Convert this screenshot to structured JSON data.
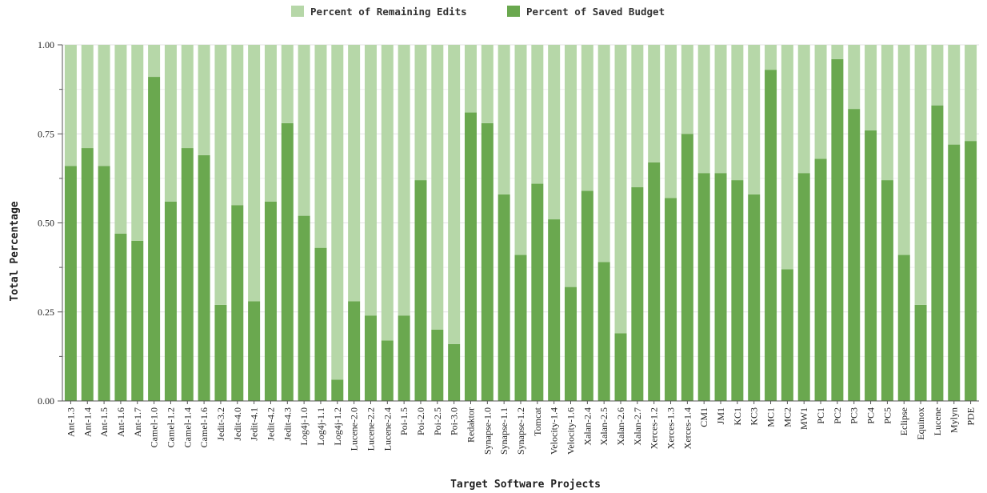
{
  "chart_data": {
    "type": "bar",
    "stacked": true,
    "xlabel": "Target Software Projects",
    "ylabel": "Total Percentage",
    "ylim": [
      0,
      1
    ],
    "yticks": [
      "0.00",
      "0.25",
      "0.50",
      "0.75",
      "1.00"
    ],
    "legend_position": "top-center",
    "categories": [
      "Ant-1.3",
      "Ant-1.4",
      "Ant-1.5",
      "Ant-1.6",
      "Ant-1.7",
      "Camel-1.0",
      "Camel-1.2",
      "Camel-1.4",
      "Camel-1.6",
      "Jedit-3.2",
      "Jedit-4.0",
      "Jedit-4.1",
      "Jedit-4.2",
      "Jedit-4.3",
      "Log4j-1.0",
      "Log4j-1.1",
      "Log4j-1.2",
      "Lucene-2.0",
      "Lucene-2.2",
      "Lucene-2.4",
      "Poi-1.5",
      "Poi-2.0",
      "Poi-2.5",
      "Poi-3.0",
      "Redaktor",
      "Synapse-1.0",
      "Synapse-1.1",
      "Synapse-1.2",
      "Tomcat",
      "Velocity-1.4",
      "Velocity-1.6",
      "Xalan-2.4",
      "Xalan-2.5",
      "Xalan-2.6",
      "Xalan-2.7",
      "Xerces-1.2",
      "Xerces-1.3",
      "Xerces-1.4",
      "CM1",
      "JM1",
      "KC1",
      "KC3",
      "MC1",
      "MC2",
      "MW1",
      "PC1",
      "PC2",
      "PC3",
      "PC4",
      "PC5",
      "Eclipse",
      "Equinox",
      "Lucene",
      "Mylyn",
      "PDE"
    ],
    "series": [
      {
        "name": "Percent of Saved Budget",
        "color": "#6aa84f",
        "values": [
          0.66,
          0.71,
          0.66,
          0.47,
          0.45,
          0.91,
          0.56,
          0.71,
          0.69,
          0.27,
          0.55,
          0.28,
          0.56,
          0.78,
          0.52,
          0.43,
          0.06,
          0.28,
          0.24,
          0.17,
          0.24,
          0.62,
          0.2,
          0.16,
          0.81,
          0.78,
          0.58,
          0.41,
          0.61,
          0.51,
          0.32,
          0.59,
          0.39,
          0.19,
          0.6,
          0.67,
          0.57,
          0.75,
          0.64,
          0.64,
          0.62,
          0.58,
          0.93,
          0.37,
          0.64,
          0.68,
          0.96,
          0.82,
          0.76,
          0.62,
          0.41,
          0.27,
          0.83,
          0.72,
          0.73
        ]
      },
      {
        "name": "Percent of Remaining Edits",
        "color": "#b6d7a8",
        "values": [
          0.34,
          0.29,
          0.34,
          0.53,
          0.55,
          0.09,
          0.44,
          0.29,
          0.31,
          0.73,
          0.45,
          0.72,
          0.44,
          0.22,
          0.48,
          0.57,
          0.94,
          0.72,
          0.76,
          0.83,
          0.76,
          0.38,
          0.8,
          0.84,
          0.19,
          0.22,
          0.42,
          0.59,
          0.39,
          0.49,
          0.68,
          0.41,
          0.61,
          0.81,
          0.4,
          0.33,
          0.43,
          0.25,
          0.36,
          0.36,
          0.38,
          0.42,
          0.07,
          0.63,
          0.36,
          0.32,
          0.04,
          0.18,
          0.24,
          0.38,
          0.59,
          0.73,
          0.17,
          0.28,
          0.27
        ]
      }
    ],
    "legend": [
      {
        "label": "Percent of Remaining Edits",
        "color": "#b6d7a8"
      },
      {
        "label": "Percent of Saved Budget",
        "color": "#6aa84f"
      }
    ]
  }
}
